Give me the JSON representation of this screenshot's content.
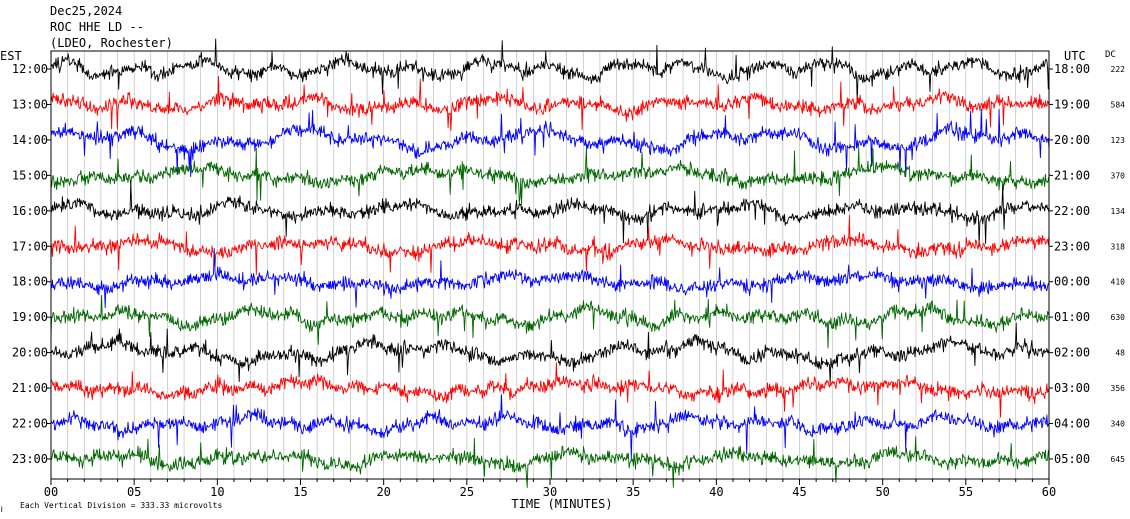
{
  "header": {
    "date": "Dec25,2024",
    "station": "ROC HHE LD --",
    "network": "(LDEO, Rochester)"
  },
  "left_axis_label": "EST",
  "right_axis_label": "UTC",
  "dc_label": "DC",
  "footer": {
    "scale_text": "Each Vertical Division =  333.33 microvolts",
    "corner_mark": "≀"
  },
  "chart_data": {
    "type": "line",
    "xlabel": "TIME (MINUTES)",
    "xlim": [
      0,
      60
    ],
    "x_ticks": [
      "00",
      "05",
      "10",
      "15",
      "20",
      "25",
      "30",
      "35",
      "40",
      "45",
      "50",
      "55",
      "60"
    ],
    "trace_colors": [
      "#000000",
      "#ff0000",
      "#0000ff",
      "#006600"
    ],
    "rows": [
      {
        "est": "12:00",
        "utc": "18:00",
        "dc": "222"
      },
      {
        "est": "13:00",
        "utc": "19:00",
        "dc": "584"
      },
      {
        "est": "14:00",
        "utc": "20:00",
        "dc": "123"
      },
      {
        "est": "15:00",
        "utc": "21:00",
        "dc": "370"
      },
      {
        "est": "16:00",
        "utc": "22:00",
        "dc": "134"
      },
      {
        "est": "17:00",
        "utc": "23:00",
        "dc": "318"
      },
      {
        "est": "18:00",
        "utc": "00:00",
        "dc": "410"
      },
      {
        "est": "19:00",
        "utc": "01:00",
        "dc": "630"
      },
      {
        "est": "20:00",
        "utc": "02:00",
        "dc": "48"
      },
      {
        "est": "21:00",
        "utc": "03:00",
        "dc": "356"
      },
      {
        "est": "22:00",
        "utc": "04:00",
        "dc": "340"
      },
      {
        "est": "23:00",
        "utc": "05:00",
        "dc": "645"
      }
    ]
  }
}
